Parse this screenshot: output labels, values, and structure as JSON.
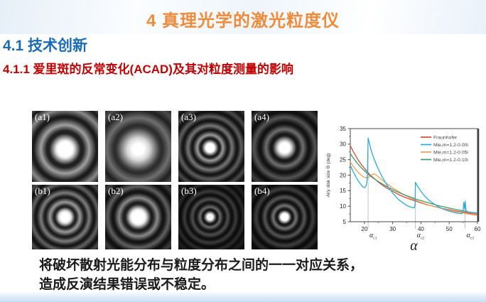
{
  "slide": {
    "title": "4 真理光学的激光粒度仪",
    "section": "4.1 技术创新",
    "subsection": "4.1.1 爱里斑的反常变化(ACAD)及其对粒度测量的影响",
    "body_line1": "将破坏散射光能分布与粒度分布之间的一一对应关系，",
    "body_line2": "造成反演结果错误或不稳定。"
  },
  "colors": {
    "title_orange": "#ee8c3c",
    "section_blue": "#1b6cb5",
    "subsection_red": "#c00000",
    "footer_strip_blue": "#c9dff2"
  },
  "airy_panels": [
    {
      "label": "(a1)"
    },
    {
      "label": "(a2)"
    },
    {
      "label": "(a3)"
    },
    {
      "label": "(a4)"
    },
    {
      "label": "(b1)"
    },
    {
      "label": "(b2)"
    },
    {
      "label": "(b3)"
    },
    {
      "label": "(b4)"
    }
  ],
  "chart_data": {
    "type": "line",
    "title": "",
    "xlabel": "α",
    "ylabel": "Airy disk size Θ (deg)",
    "xlim": [
      15,
      60
    ],
    "ylim": [
      5,
      35
    ],
    "x_ticks": [
      20,
      30,
      40,
      50,
      60
    ],
    "x_minor_ticks": [
      25,
      35,
      45,
      55
    ],
    "y_ticks": [
      5,
      10,
      15,
      20,
      25,
      30,
      35
    ],
    "grid": false,
    "legend_position": "top-right",
    "series": [
      {
        "name": "Fraunhofer",
        "color": "#d9483b",
        "points": [
          [
            15,
            29.5
          ],
          [
            16,
            27.7
          ],
          [
            17,
            26.1
          ],
          [
            18,
            24.6
          ],
          [
            19,
            23.3
          ],
          [
            20,
            22.2
          ],
          [
            21,
            21.1
          ],
          [
            22,
            20.1
          ],
          [
            23,
            19.3
          ],
          [
            24,
            18.5
          ],
          [
            25,
            17.7
          ],
          [
            26.5,
            16.7
          ],
          [
            28,
            15.8
          ],
          [
            30,
            14.8
          ],
          [
            32,
            13.8
          ],
          [
            34,
            13.0
          ],
          [
            36,
            12.3
          ],
          [
            38,
            11.7
          ],
          [
            40,
            11.1
          ],
          [
            42,
            10.5
          ],
          [
            44,
            10.1
          ],
          [
            46,
            9.6
          ],
          [
            48,
            9.2
          ],
          [
            50,
            8.9
          ],
          [
            52,
            8.5
          ],
          [
            54,
            8.2
          ],
          [
            56,
            7.9
          ],
          [
            58,
            7.6
          ],
          [
            60,
            7.4
          ]
        ]
      },
      {
        "name": "Mie,m=1.2-0.00i",
        "color": "#2ea9dc",
        "points": [
          [
            15,
            23.2
          ],
          [
            16,
            21.2
          ],
          [
            17,
            19.4
          ],
          [
            18,
            17.9
          ],
          [
            19,
            16.7
          ],
          [
            19.6,
            16.1
          ],
          [
            20.2,
            16.0
          ],
          [
            20.7,
            16.9
          ],
          [
            21.0,
            19.0
          ],
          [
            21.15,
            24.0
          ],
          [
            21.3,
            32.0
          ],
          [
            21.7,
            30.5
          ],
          [
            22.3,
            28.3
          ],
          [
            23.2,
            25.8
          ],
          [
            24.5,
            22.8
          ],
          [
            26,
            19.9
          ],
          [
            28,
            16.8
          ],
          [
            30,
            14.2
          ],
          [
            32,
            12.2
          ],
          [
            34,
            10.8
          ],
          [
            35.5,
            10.0
          ],
          [
            36.8,
            9.6
          ],
          [
            37.6,
            9.5
          ],
          [
            37.9,
            10.2
          ],
          [
            38.05,
            17.7
          ],
          [
            38.7,
            16.6
          ],
          [
            39.6,
            15.3
          ],
          [
            41,
            13.6
          ],
          [
            42.5,
            12.2
          ],
          [
            44,
            11.1
          ],
          [
            46,
            9.9
          ],
          [
            48,
            9.0
          ],
          [
            50,
            8.4
          ],
          [
            52,
            7.9
          ],
          [
            53.5,
            7.65
          ],
          [
            54.5,
            7.6
          ],
          [
            54.9,
            8.3
          ],
          [
            55.15,
            11.2
          ],
          [
            55.4,
            9.2
          ],
          [
            55.65,
            11.6
          ],
          [
            55.95,
            8.6
          ],
          [
            56.5,
            8.2
          ],
          [
            57.5,
            8.0
          ],
          [
            59,
            7.9
          ],
          [
            60,
            7.8
          ]
        ]
      },
      {
        "name": "Mie,m=1.2-0.05i",
        "color": "#efa052",
        "points": [
          [
            15,
            24.3
          ],
          [
            16,
            22.9
          ],
          [
            17,
            21.7
          ],
          [
            18,
            20.7
          ],
          [
            19,
            19.9
          ],
          [
            20,
            19.3
          ],
          [
            20.8,
            19.1
          ],
          [
            21.6,
            19.3
          ],
          [
            22.4,
            19.9
          ],
          [
            23.1,
            20.4
          ],
          [
            23.7,
            20.3
          ],
          [
            24.5,
            19.8
          ],
          [
            25.5,
            19.0
          ],
          [
            27,
            17.9
          ],
          [
            28.5,
            16.9
          ],
          [
            30,
            15.9
          ],
          [
            31.5,
            15.1
          ],
          [
            33,
            14.2
          ],
          [
            34.5,
            13.5
          ],
          [
            36,
            12.8
          ],
          [
            37.5,
            12.2
          ],
          [
            39,
            11.6
          ],
          [
            40.5,
            11.1
          ],
          [
            42,
            10.6
          ],
          [
            43.5,
            10.2
          ],
          [
            45,
            9.8
          ],
          [
            46.5,
            9.5
          ],
          [
            48,
            9.1
          ],
          [
            50,
            8.7
          ],
          [
            52,
            8.3
          ],
          [
            54,
            8.0
          ],
          [
            56,
            7.6
          ],
          [
            58,
            7.3
          ],
          [
            60,
            7.0
          ]
        ]
      },
      {
        "name": "Mie,m=1.2-0.10i",
        "color": "#3b9c6b",
        "points": [
          [
            15,
            27.0
          ],
          [
            16,
            25.6
          ],
          [
            17,
            24.4
          ],
          [
            18,
            23.3
          ],
          [
            19,
            22.3
          ],
          [
            20,
            21.4
          ],
          [
            21,
            20.6
          ],
          [
            22,
            19.8
          ],
          [
            23,
            19.1
          ],
          [
            24,
            18.5
          ],
          [
            25,
            17.9
          ],
          [
            26.5,
            17.1
          ],
          [
            28,
            16.3
          ],
          [
            29.5,
            15.6
          ],
          [
            31,
            14.9
          ],
          [
            32.5,
            14.3
          ],
          [
            34,
            13.7
          ],
          [
            35.5,
            13.2
          ],
          [
            37,
            12.7
          ],
          [
            38.5,
            12.2
          ],
          [
            40,
            11.8
          ],
          [
            41.5,
            11.4
          ],
          [
            43,
            11.0
          ],
          [
            44.5,
            10.6
          ],
          [
            46,
            10.2
          ],
          [
            47.5,
            9.9
          ],
          [
            49,
            9.6
          ],
          [
            50.5,
            9.3
          ],
          [
            52,
            9.0
          ],
          [
            53.5,
            8.7
          ],
          [
            55,
            8.5
          ],
          [
            56.5,
            8.2
          ],
          [
            58,
            8.0
          ],
          [
            60,
            7.8
          ]
        ]
      }
    ],
    "critical_lines": [
      {
        "x": 21.3,
        "y_top": 30.8,
        "symbol": "α",
        "sub": "c1"
      },
      {
        "x": 38.05,
        "y_top": 17.7,
        "symbol": "α",
        "sub": "c2"
      },
      {
        "x": 55.6,
        "y_top": 11.6,
        "symbol": "α",
        "sub": "c3"
      }
    ]
  }
}
